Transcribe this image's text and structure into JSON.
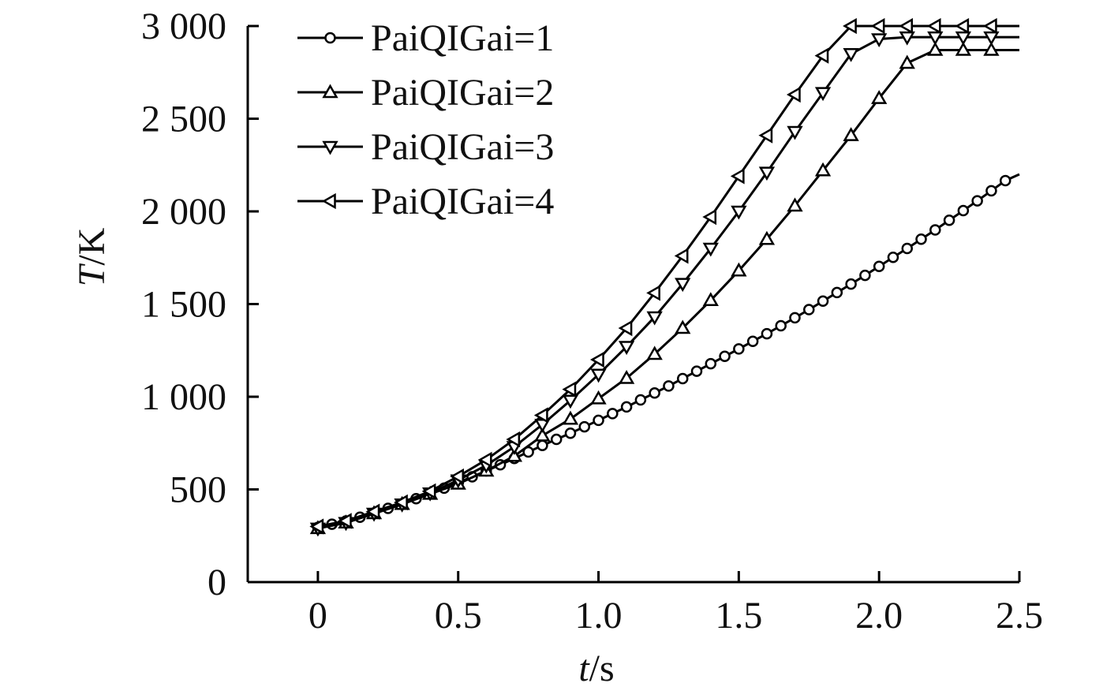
{
  "chart_data": {
    "type": "line",
    "title": "",
    "xlabel": {
      "var": "t",
      "unit": "/s"
    },
    "ylabel": {
      "var": "T",
      "unit": "/K"
    },
    "xlim": [
      -0.25,
      2.5
    ],
    "ylim": [
      0,
      3000
    ],
    "xticks": [
      0,
      0.5,
      1.0,
      1.5,
      2.0,
      2.5
    ],
    "xtick_labels": [
      "0",
      "0.5",
      "1.0",
      "1.5",
      "2.0",
      "2.5"
    ],
    "yticks": [
      0,
      500,
      1000,
      1500,
      2000,
      2500,
      3000
    ],
    "ytick_labels": [
      "0",
      "500",
      "1 000",
      "1 500",
      "2 000",
      "2 500",
      "3 000"
    ],
    "grid": false,
    "legend_position": "top-left",
    "series": [
      {
        "name": "PaiQIGai=1",
        "marker": "circle",
        "x": [
          0,
          0.05,
          0.1,
          0.15,
          0.2,
          0.25,
          0.3,
          0.35,
          0.4,
          0.45,
          0.5,
          0.55,
          0.6,
          0.65,
          0.7,
          0.75,
          0.8,
          0.85,
          0.9,
          0.95,
          1.0,
          1.05,
          1.1,
          1.15,
          1.2,
          1.25,
          1.3,
          1.35,
          1.4,
          1.45,
          1.5,
          1.55,
          1.6,
          1.65,
          1.7,
          1.75,
          1.8,
          1.85,
          1.9,
          1.95,
          2.0,
          2.05,
          2.1,
          2.15,
          2.2,
          2.25,
          2.3,
          2.35,
          2.4,
          2.45
        ],
        "y": [
          295,
          312,
          330,
          350,
          373,
          398,
          423,
          450,
          478,
          507,
          537,
          568,
          600,
          633,
          667,
          702,
          737,
          770,
          803,
          838,
          873,
          909,
          945,
          983,
          1020,
          1058,
          1098,
          1138,
          1178,
          1218,
          1258,
          1299,
          1340,
          1383,
          1426,
          1470,
          1516,
          1562,
          1608,
          1655,
          1703,
          1752,
          1800,
          1850,
          1900,
          1952,
          2004,
          2057,
          2111,
          2166
        ],
        "x_end": 2.5,
        "y_end": 2200
      },
      {
        "name": "PaiQIGai=2",
        "marker": "triangle-up",
        "x": [
          0,
          0.1,
          0.2,
          0.3,
          0.4,
          0.5,
          0.6,
          0.7,
          0.8,
          0.9,
          1.0,
          1.1,
          1.2,
          1.3,
          1.4,
          1.5,
          1.6,
          1.7,
          1.8,
          1.9,
          2.0,
          2.1,
          2.2,
          2.3,
          2.4
        ],
        "y": [
          290,
          320,
          370,
          420,
          475,
          530,
          600,
          680,
          790,
          880,
          990,
          1100,
          1230,
          1370,
          1520,
          1680,
          1850,
          2030,
          2220,
          2410,
          2610,
          2800,
          2870,
          2870,
          2870
        ],
        "x_end": 2.5,
        "y_end": 2870
      },
      {
        "name": "PaiQIGai=3",
        "marker": "triangle-down",
        "x": [
          0,
          0.1,
          0.2,
          0.3,
          0.4,
          0.5,
          0.6,
          0.7,
          0.8,
          0.9,
          1.0,
          1.1,
          1.2,
          1.3,
          1.4,
          1.5,
          1.6,
          1.7,
          1.8,
          1.9,
          2.0,
          2.1,
          2.2,
          2.3,
          2.4
        ],
        "y": [
          290,
          320,
          370,
          420,
          480,
          550,
          630,
          730,
          850,
          980,
          1120,
          1270,
          1430,
          1610,
          1800,
          2000,
          2210,
          2430,
          2640,
          2850,
          2930,
          2940,
          2940,
          2940,
          2940
        ],
        "x_end": 2.5,
        "y_end": 2940
      },
      {
        "name": "PaiQIGai=4",
        "marker": "triangle-left",
        "x": [
          0,
          0.1,
          0.2,
          0.3,
          0.4,
          0.5,
          0.6,
          0.7,
          0.8,
          0.9,
          1.0,
          1.1,
          1.2,
          1.3,
          1.4,
          1.5,
          1.6,
          1.7,
          1.8,
          1.9,
          2.0,
          2.1,
          2.2,
          2.3,
          2.4
        ],
        "y": [
          300,
          330,
          380,
          430,
          490,
          570,
          660,
          770,
          900,
          1040,
          1200,
          1370,
          1560,
          1760,
          1970,
          2190,
          2410,
          2630,
          2840,
          3000,
          3000,
          3000,
          3000,
          3000,
          3000
        ],
        "x_end": 2.5,
        "y_end": 3000
      }
    ]
  }
}
